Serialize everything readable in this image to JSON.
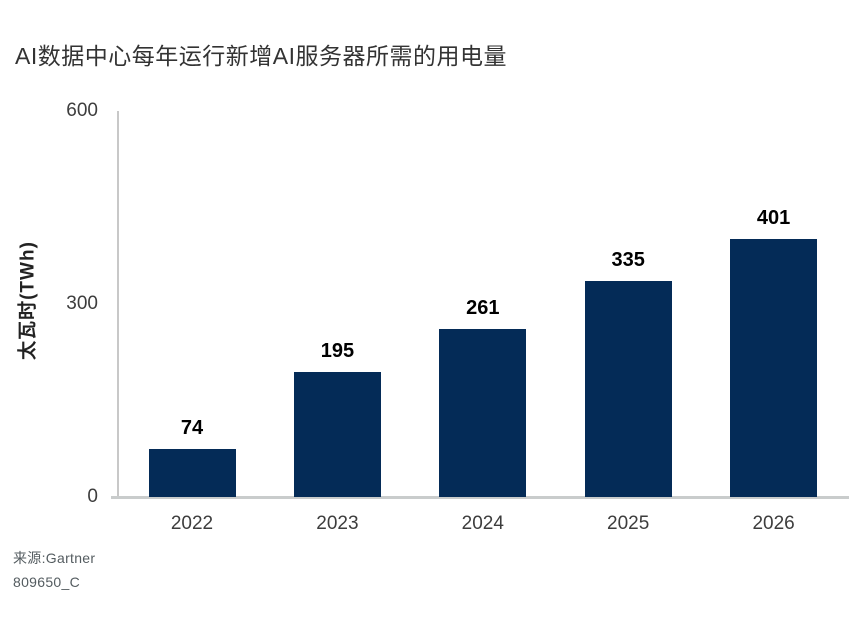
{
  "page": {
    "title": "AI数据中心每年运行新增AI服务器所需的用电量"
  },
  "chart_data": {
    "type": "bar",
    "title": "AI数据中心每年运行新增AI服务器所需的用电量",
    "categories": [
      "2022",
      "2023",
      "2024",
      "2025",
      "2026"
    ],
    "values": [
      74,
      195,
      261,
      335,
      401
    ],
    "xlabel": "",
    "ylabel": "太瓦时(TWh)",
    "ylim": [
      0,
      600
    ],
    "yticks": [
      0,
      300,
      600
    ],
    "bar_color": "#042b57",
    "axis_color": "#c8c8c8",
    "value_label_color": "#000000",
    "tick_label_color": "#3d3d3d",
    "grid": false,
    "legend": "none",
    "data_labels": true
  },
  "source": {
    "line1": "来源:Gartner",
    "line2": "809650_C"
  }
}
